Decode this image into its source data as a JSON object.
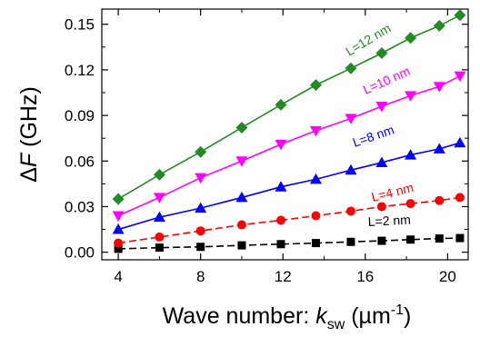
{
  "chart_data": {
    "type": "line",
    "xlabel": {
      "prefix": "Wave number: ",
      "var": "k",
      "sub": "sw",
      "unit_open": " (µm",
      "sup": "-1",
      "unit_close": ")"
    },
    "ylabel": {
      "delta": "Δ",
      "var": "F",
      "unit": " (GHz)"
    },
    "xlim": [
      3.2,
      21.0
    ],
    "ylim": [
      -0.005,
      0.16
    ],
    "xticks": [
      4,
      8,
      12,
      16,
      20
    ],
    "yticks": [
      0.0,
      0.03,
      0.06,
      0.09,
      0.12,
      0.15
    ],
    "ytick_labels": [
      "0.00",
      "0.03",
      "0.06",
      "0.09",
      "0.12",
      "0.15"
    ],
    "grid": false,
    "series": [
      {
        "name": "L=2 nm",
        "color": "#000000",
        "marker": "square",
        "line": "dashed",
        "x": [
          4,
          6,
          8,
          10,
          11.9,
          13.6,
          15.3,
          16.8,
          18.2,
          19.6,
          20.6
        ],
        "y": [
          0.0022,
          0.003,
          0.0035,
          0.0045,
          0.0053,
          0.006,
          0.0068,
          0.0075,
          0.0083,
          0.009,
          0.0093
        ]
      },
      {
        "name": "L=4 nm",
        "color": "#ff0000",
        "marker": "circle",
        "line": "dashed",
        "x": [
          4,
          6,
          8,
          10,
          11.9,
          13.6,
          15.3,
          16.8,
          18.2,
          19.6,
          20.6
        ],
        "y": [
          0.006,
          0.01,
          0.014,
          0.018,
          0.021,
          0.024,
          0.027,
          0.03,
          0.032,
          0.034,
          0.036
        ]
      },
      {
        "name": "L=8 nm",
        "color": "#0000ff",
        "marker": "triangle-up",
        "line": "solid",
        "x": [
          4,
          6,
          8,
          10,
          11.9,
          13.6,
          15.3,
          16.8,
          18.2,
          19.6,
          20.6
        ],
        "y": [
          0.015,
          0.023,
          0.029,
          0.036,
          0.043,
          0.048,
          0.054,
          0.059,
          0.064,
          0.068,
          0.072
        ]
      },
      {
        "name": "L=10 nm",
        "color": "#ff00ff",
        "marker": "triangle-down",
        "line": "solid",
        "x": [
          4,
          6,
          8,
          10,
          11.9,
          13.6,
          15.3,
          16.8,
          18.2,
          19.6,
          20.6
        ],
        "y": [
          0.024,
          0.036,
          0.049,
          0.06,
          0.071,
          0.08,
          0.088,
          0.096,
          0.103,
          0.109,
          0.116
        ]
      },
      {
        "name": "L=12 nm",
        "color": "#228b22",
        "marker": "diamond",
        "line": "solid",
        "x": [
          4,
          6,
          8,
          10,
          11.9,
          13.6,
          15.3,
          16.8,
          18.2,
          19.6,
          20.6
        ],
        "y": [
          0.035,
          0.051,
          0.066,
          0.082,
          0.097,
          0.11,
          0.121,
          0.131,
          0.141,
          0.149,
          0.156
        ]
      }
    ]
  }
}
